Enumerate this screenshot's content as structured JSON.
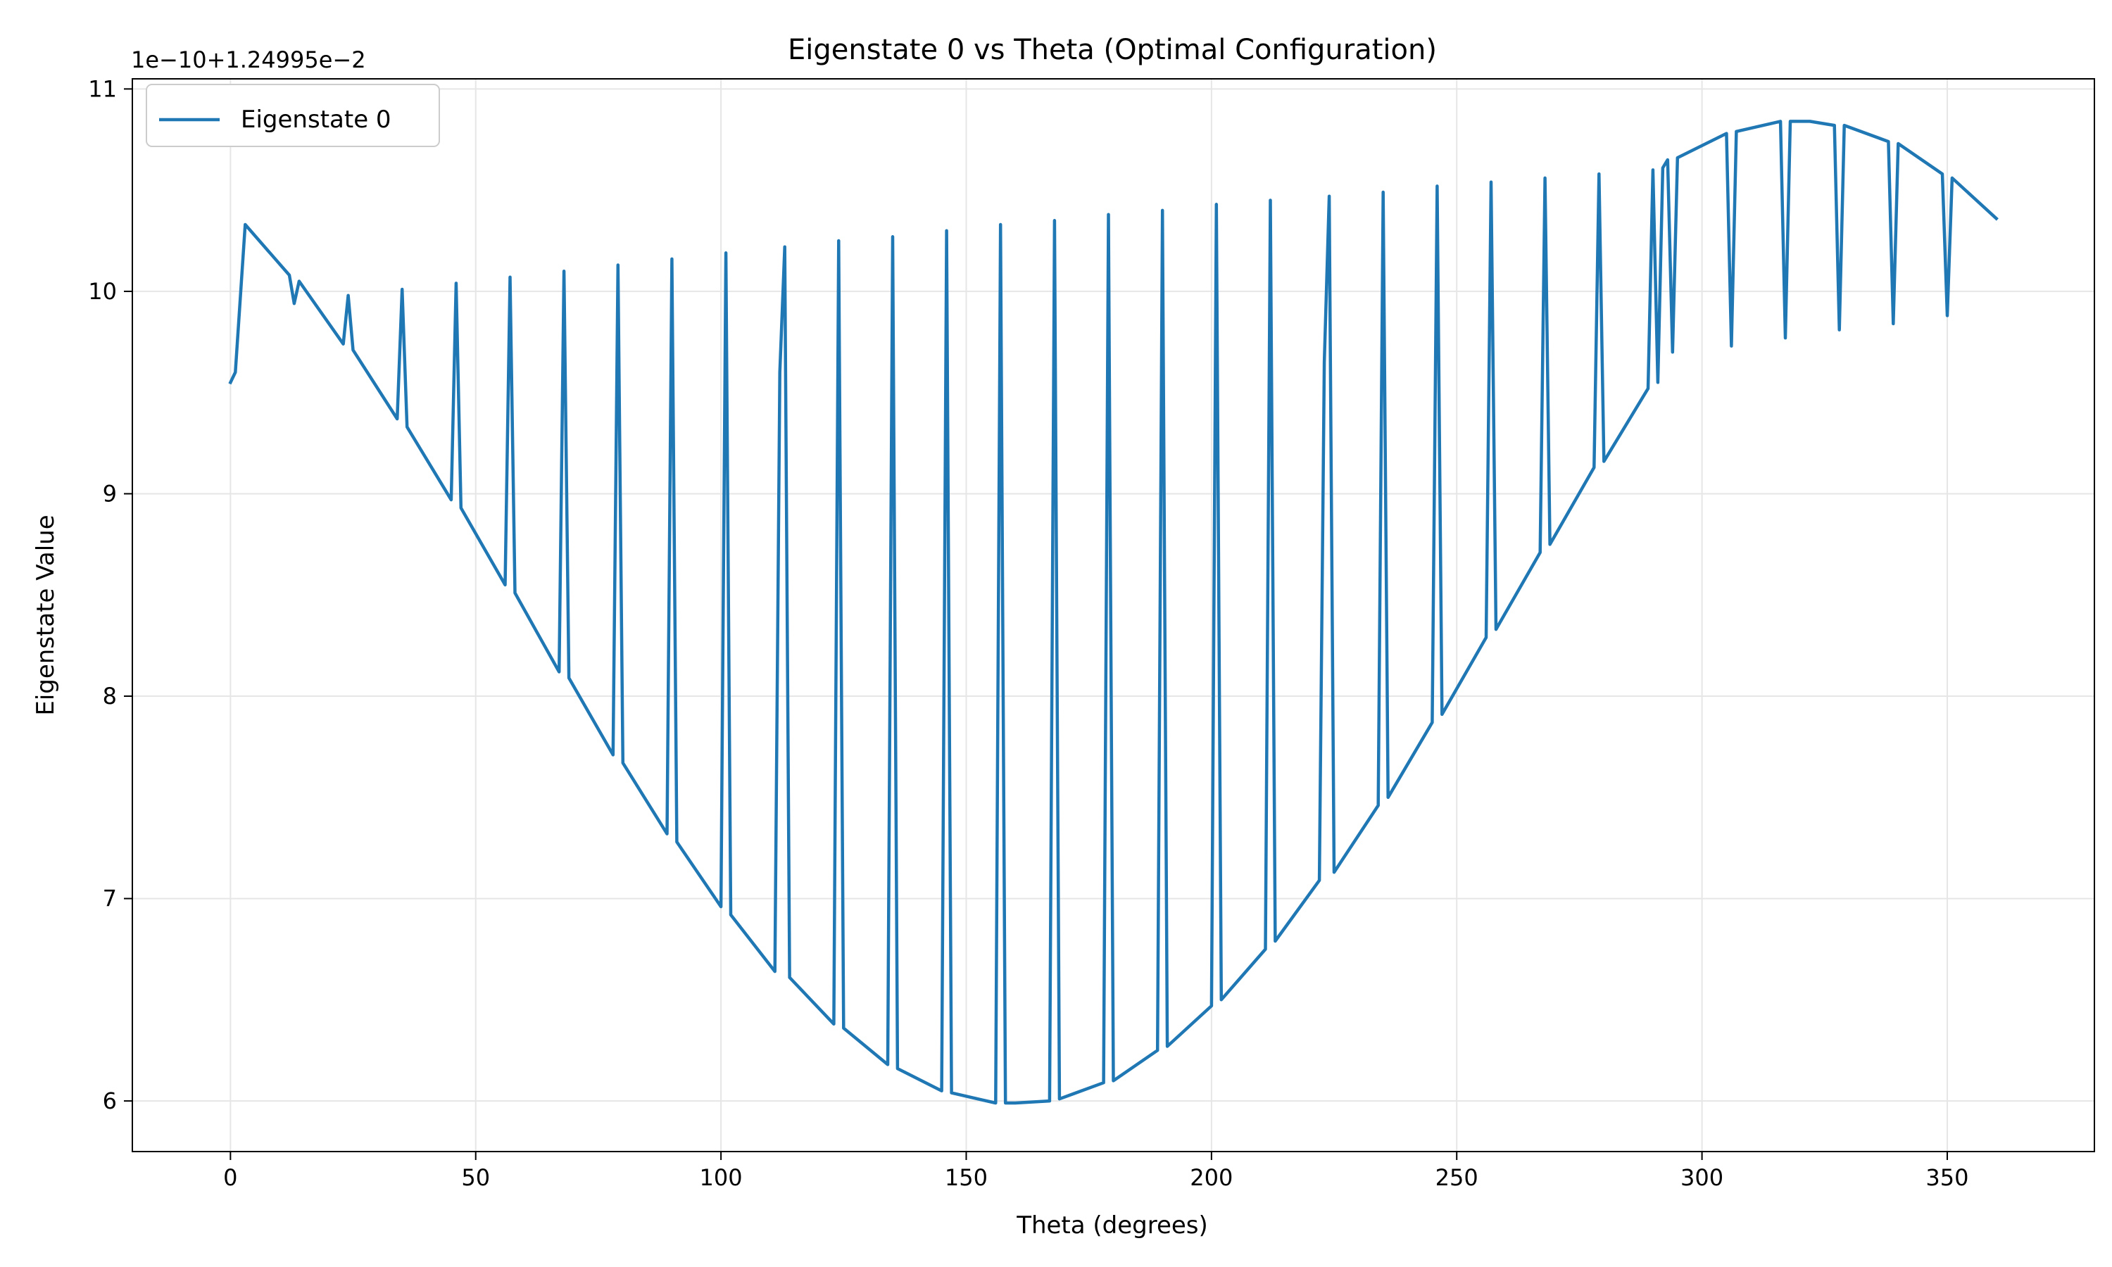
{
  "chart_data": {
    "type": "line",
    "title": "Eigenstate 0 vs Theta (Optimal Configuration)",
    "xlabel": "Theta (degrees)",
    "ylabel": "Eigenstate Value",
    "offset_label": "1e−10+1.24995e−2",
    "xlim": [
      -20,
      380
    ],
    "ylim": [
      5.75,
      11.05
    ],
    "xticks": [
      0,
      50,
      100,
      150,
      200,
      250,
      300,
      350
    ],
    "yticks": [
      6,
      7,
      8,
      9,
      10,
      11
    ],
    "grid": true,
    "legend_position": "upper-left",
    "series": [
      {
        "name": "Eigenstate 0",
        "color": "#1f77b4",
        "x": [
          0,
          1,
          3,
          12,
          13,
          14,
          23,
          24,
          25,
          34,
          35,
          36,
          45,
          46,
          47,
          56,
          57,
          58,
          67,
          68,
          69,
          78,
          79,
          80,
          89,
          90,
          91,
          100,
          101,
          102,
          111,
          112,
          113,
          114,
          123,
          124,
          125,
          134,
          135,
          136,
          145,
          146,
          147,
          156,
          157,
          158,
          160,
          167,
          168,
          169,
          178,
          179,
          180,
          189,
          190,
          191,
          200,
          201,
          202,
          211,
          212,
          213,
          222,
          223,
          224,
          225,
          234,
          235,
          236,
          245,
          246,
          247,
          256,
          257,
          258,
          267,
          268,
          269,
          278,
          279,
          280,
          289,
          290,
          291,
          292,
          293,
          294,
          295,
          305,
          306,
          307,
          316,
          317,
          318,
          322,
          327,
          328,
          329,
          338,
          339,
          340,
          349,
          350,
          351,
          360
        ],
        "values": [
          9.55,
          9.6,
          10.33,
          10.08,
          9.94,
          10.05,
          9.74,
          9.98,
          9.71,
          9.37,
          10.01,
          9.33,
          8.97,
          10.04,
          8.93,
          8.55,
          10.07,
          8.51,
          8.12,
          10.1,
          8.09,
          7.71,
          10.13,
          7.67,
          7.32,
          10.16,
          7.28,
          6.96,
          10.19,
          6.92,
          6.64,
          9.6,
          10.22,
          6.61,
          6.38,
          10.25,
          6.36,
          6.18,
          10.27,
          6.16,
          6.05,
          10.3,
          6.04,
          5.99,
          10.33,
          5.99,
          5.99,
          6.0,
          10.35,
          6.01,
          6.09,
          10.38,
          6.1,
          6.25,
          10.4,
          6.27,
          6.47,
          10.43,
          6.5,
          6.75,
          10.45,
          6.79,
          7.09,
          9.65,
          10.47,
          7.13,
          7.46,
          10.49,
          7.5,
          7.87,
          10.52,
          7.91,
          8.29,
          10.54,
          8.33,
          8.71,
          10.56,
          8.75,
          9.13,
          10.58,
          9.16,
          9.52,
          10.6,
          9.55,
          10.61,
          10.65,
          9.7,
          10.66,
          10.78,
          9.73,
          10.79,
          10.84,
          9.77,
          10.84,
          10.84,
          10.82,
          9.81,
          10.82,
          10.74,
          9.84,
          10.73,
          10.58,
          9.88,
          10.56,
          10.36
        ]
      }
    ]
  }
}
